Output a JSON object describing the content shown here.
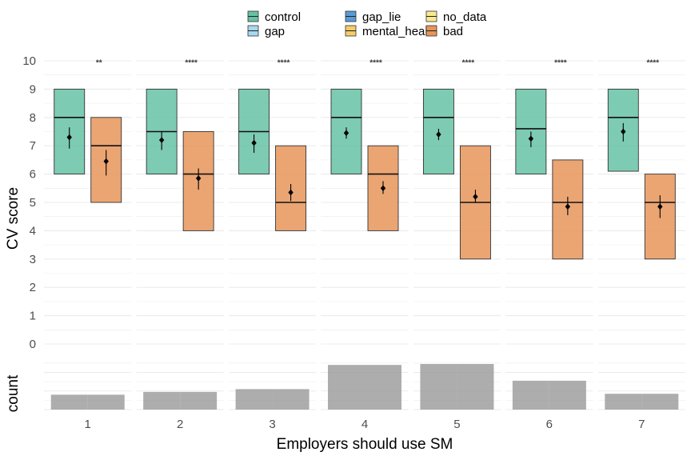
{
  "colors": {
    "control": "#66c2a5",
    "bad": "#e6955a",
    "count": "#999999",
    "gridline": "#ebebeb",
    "mean_marker": "#000000",
    "legend": {
      "control": "#66c2a5",
      "gap": "#a6d8f0",
      "gap_lie": "#5b9bd5",
      "mental_health": "#f5cc6b",
      "no_data": "#fbe98e",
      "bad": "#e6955a"
    }
  },
  "legend": {
    "items": [
      {
        "key": "control",
        "label": "control"
      },
      {
        "key": "gap",
        "label": "gap"
      },
      {
        "key": "gap_lie",
        "label": "gap_lie"
      },
      {
        "key": "mental_health",
        "label": "mental_health"
      },
      {
        "key": "no_data",
        "label": "no_data"
      },
      {
        "key": "bad",
        "label": "bad"
      }
    ]
  },
  "chart_data": [
    {
      "type": "boxplot",
      "ylabel": "CV score",
      "ylim": [
        0,
        10
      ],
      "yticks": [
        0,
        1,
        2,
        3,
        4,
        5,
        6,
        7,
        8,
        9,
        10
      ],
      "grid": true,
      "legend_position": "top",
      "categories": [
        "1",
        "2",
        "3",
        "4",
        "5",
        "6",
        "7"
      ],
      "series": [
        {
          "name": "control",
          "boxes": [
            {
              "q1": 6,
              "median": 8,
              "q3": 9,
              "mean": 7.3,
              "ci": [
                6.9,
                7.65
              ]
            },
            {
              "q1": 6,
              "median": 7.5,
              "q3": 9,
              "mean": 7.2,
              "ci": [
                6.85,
                7.5
              ]
            },
            {
              "q1": 6,
              "median": 7.5,
              "q3": 9,
              "mean": 7.1,
              "ci": [
                6.75,
                7.4
              ]
            },
            {
              "q1": 6,
              "median": 8,
              "q3": 9,
              "mean": 7.45,
              "ci": [
                7.25,
                7.65
              ]
            },
            {
              "q1": 6,
              "median": 8,
              "q3": 9,
              "mean": 7.4,
              "ci": [
                7.2,
                7.6
              ]
            },
            {
              "q1": 6,
              "median": 7.6,
              "q3": 9,
              "mean": 7.25,
              "ci": [
                6.95,
                7.5
              ]
            },
            {
              "q1": 6.1,
              "median": 8,
              "q3": 9,
              "mean": 7.5,
              "ci": [
                7.15,
                7.8
              ]
            }
          ]
        },
        {
          "name": "bad",
          "boxes": [
            {
              "q1": 5,
              "median": 7,
              "q3": 8,
              "mean": 6.45,
              "ci": [
                5.95,
                6.85
              ]
            },
            {
              "q1": 4,
              "median": 6,
              "q3": 7.5,
              "mean": 5.85,
              "ci": [
                5.45,
                6.2
              ]
            },
            {
              "q1": 4,
              "median": 5,
              "q3": 7,
              "mean": 5.35,
              "ci": [
                5.05,
                5.65
              ]
            },
            {
              "q1": 4,
              "median": 6,
              "q3": 7,
              "mean": 5.5,
              "ci": [
                5.3,
                5.75
              ]
            },
            {
              "q1": 3,
              "median": 5,
              "q3": 7,
              "mean": 5.2,
              "ci": [
                5.0,
                5.45
              ]
            },
            {
              "q1": 3,
              "median": 5,
              "q3": 6.5,
              "mean": 4.85,
              "ci": [
                4.55,
                5.2
              ]
            },
            {
              "q1": 3,
              "median": 5,
              "q3": 6,
              "mean": 4.85,
              "ci": [
                4.45,
                5.25
              ]
            }
          ]
        }
      ],
      "significance": [
        "**",
        "****",
        "****",
        "****",
        "****",
        "****",
        "****"
      ]
    },
    {
      "type": "bar",
      "ylabel": "count",
      "xlabel": "Employers should use SM",
      "categories": [
        "1",
        "2",
        "3",
        "4",
        "5",
        "6",
        "7"
      ],
      "values": [
        16,
        19,
        22,
        48,
        49,
        31,
        17
      ],
      "yrange": [
        0,
        55
      ]
    }
  ]
}
